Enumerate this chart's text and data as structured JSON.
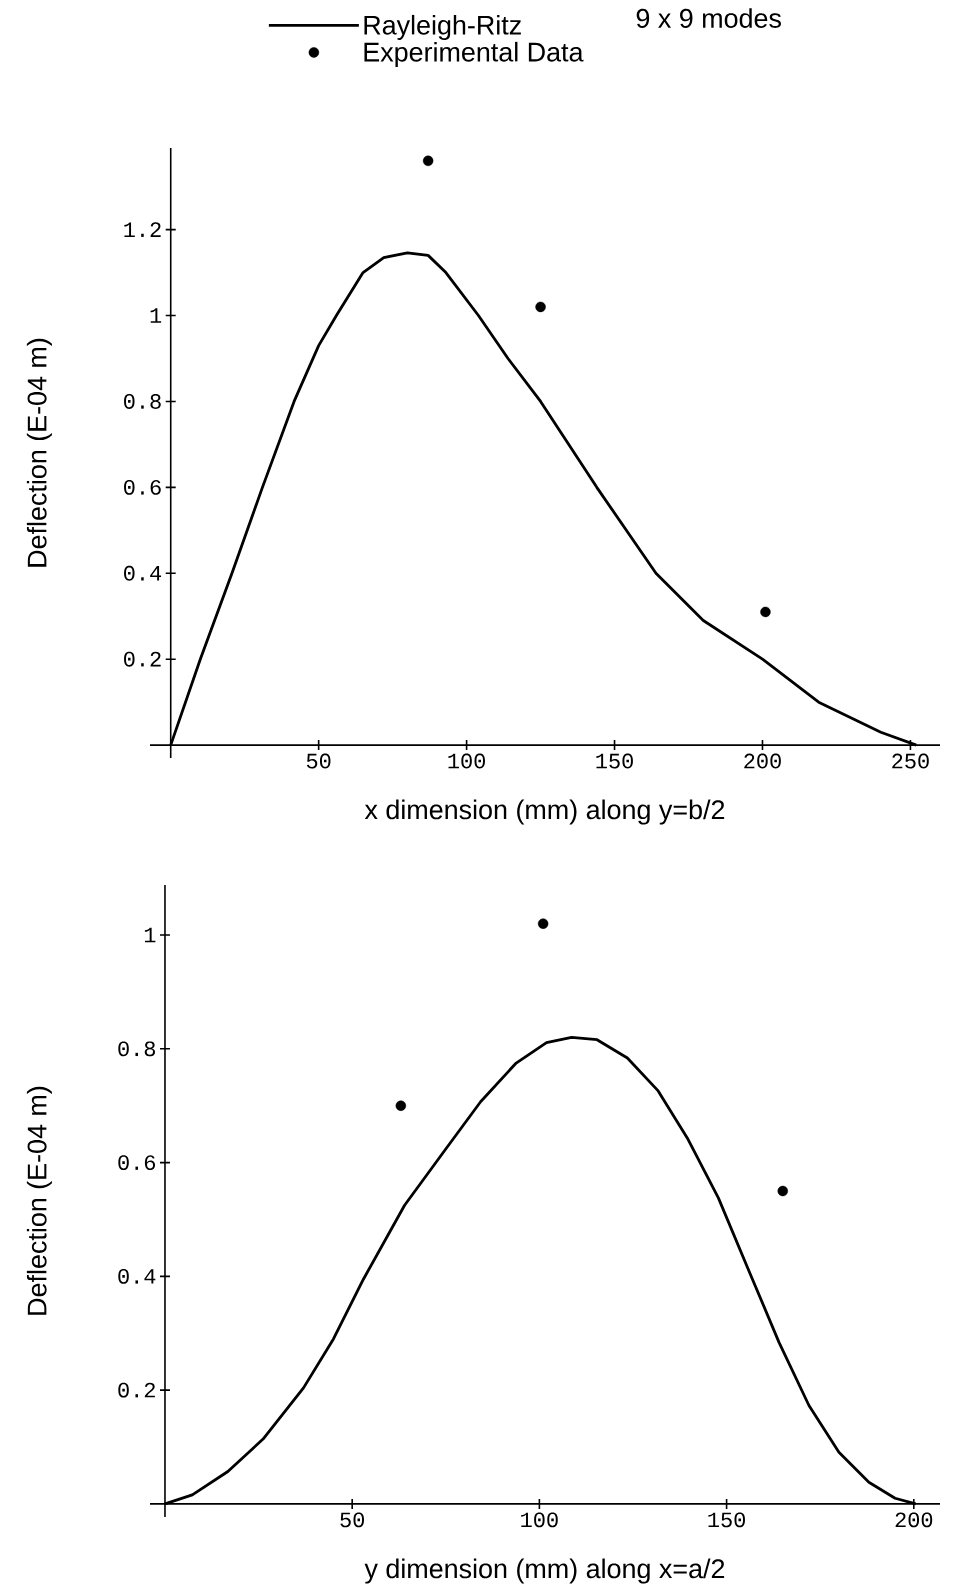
{
  "chart_data": [
    {
      "type": "line",
      "xlabel": "x dimension (mm) along y=b/2",
      "ylabel": "Deflection (E-04 m)",
      "xlim": [
        -7,
        260
      ],
      "ylim": [
        -0.03,
        1.39
      ],
      "xticks": [
        50,
        100,
        150,
        200,
        250
      ],
      "yticks": [
        0.2,
        0.4,
        0.6,
        0.8,
        1,
        1.2
      ],
      "legend": "top",
      "annotations": [
        "9 x 9 modes"
      ],
      "series": [
        {
          "name": "Rayleigh-Ritz",
          "type": "line",
          "color": "#000000",
          "marker": "none",
          "x": [
            0,
            10,
            20.7,
            31,
            41.7,
            50,
            56,
            65,
            72,
            80,
            87,
            93,
            104,
            114,
            125,
            144,
            164,
            180,
            200,
            219,
            240,
            252
          ],
          "values": [
            0,
            0.2,
            0.4,
            0.6,
            0.8,
            0.93,
            1.0,
            1.1,
            1.135,
            1.146,
            1.14,
            1.1,
            1.0,
            0.9,
            0.8,
            0.6,
            0.4,
            0.29,
            0.2,
            0.1,
            0.03,
            0
          ]
        },
        {
          "name": "Experimental Data",
          "type": "scatter",
          "color": "#000000",
          "marker": "circle",
          "x": [
            87,
            125,
            201
          ],
          "values": [
            1.36,
            1.02,
            0.31
          ]
        }
      ]
    },
    {
      "type": "line",
      "xlabel": "y dimension (mm) along x=a/2",
      "ylabel": "Deflection (E-04 m)",
      "xlim": [
        -4,
        207
      ],
      "ylim": [
        -0.023,
        1.088
      ],
      "xticks": [
        50,
        100,
        150,
        200
      ],
      "yticks": [
        0.2,
        0.4,
        0.6,
        0.8,
        1
      ],
      "series": [
        {
          "type": "line",
          "color": "#000000",
          "marker": "none",
          "x": [
            0,
            7.3,
            16.8,
            26.2,
            37,
            45,
            53,
            64,
            74.9,
            84.3,
            93.8,
            101.9,
            108.6,
            115.4,
            123.5,
            131.6,
            139.7,
            147.8,
            156,
            164,
            172,
            180,
            188,
            195,
            200.5
          ],
          "values": [
            0,
            0.016,
            0.057,
            0.114,
            0.204,
            0.29,
            0.395,
            0.525,
            0.623,
            0.707,
            0.775,
            0.811,
            0.82,
            0.816,
            0.784,
            0.727,
            0.641,
            0.538,
            0.409,
            0.284,
            0.173,
            0.091,
            0.038,
            0.01,
            0
          ]
        },
        {
          "type": "scatter",
          "color": "#000000",
          "marker": "circle",
          "x": [
            63,
            101,
            165
          ],
          "values": [
            0.7,
            1.02,
            0.55
          ]
        }
      ]
    }
  ]
}
